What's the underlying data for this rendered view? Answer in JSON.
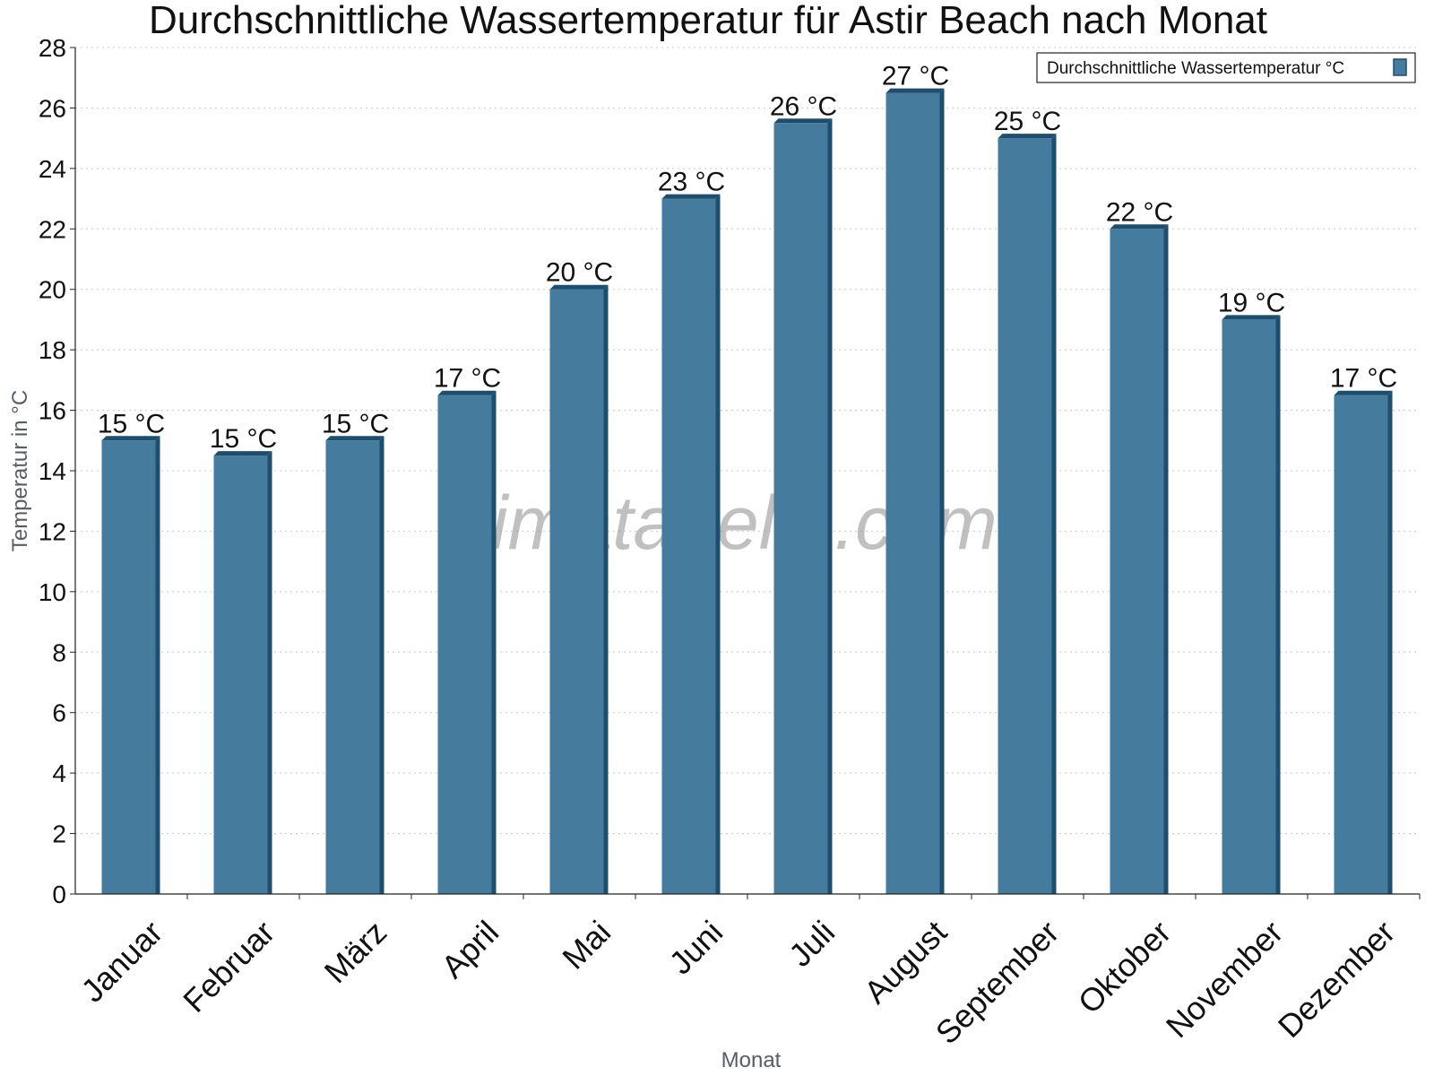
{
  "chart_data": {
    "type": "bar",
    "title": "Durchschnittliche Wassertemperatur für Astir Beach nach Monat",
    "xlabel": "Monat",
    "ylabel": "Temperatur in °C",
    "categories": [
      "Januar",
      "Februar",
      "März",
      "April",
      "Mai",
      "Juni",
      "Juli",
      "August",
      "September",
      "Oktober",
      "November",
      "Dezember"
    ],
    "series": [
      {
        "name": "Durchschnittliche Wassertemperatur °C",
        "values": [
          15.0,
          14.5,
          15.0,
          16.5,
          20.0,
          23.0,
          25.5,
          26.5,
          25.0,
          22.0,
          19.0,
          16.5
        ],
        "labels": [
          "15 °C",
          "15 °C",
          "15 °C",
          "17 °C",
          "20 °C",
          "23 °C",
          "26 °C",
          "27 °C",
          "25 °C",
          "22 °C",
          "19 °C",
          "17 °C"
        ]
      }
    ],
    "ylim": [
      0,
      28
    ],
    "yticks": [
      0,
      2,
      4,
      6,
      8,
      10,
      12,
      14,
      16,
      18,
      20,
      22,
      24,
      26,
      28
    ],
    "grid": true,
    "legend_position": "top-right",
    "colors": {
      "bar": "#457b9d",
      "bar_side": "#1d4e6e",
      "bar_top": "#1d4e6e"
    },
    "watermark": "klimatabelle.com"
  }
}
